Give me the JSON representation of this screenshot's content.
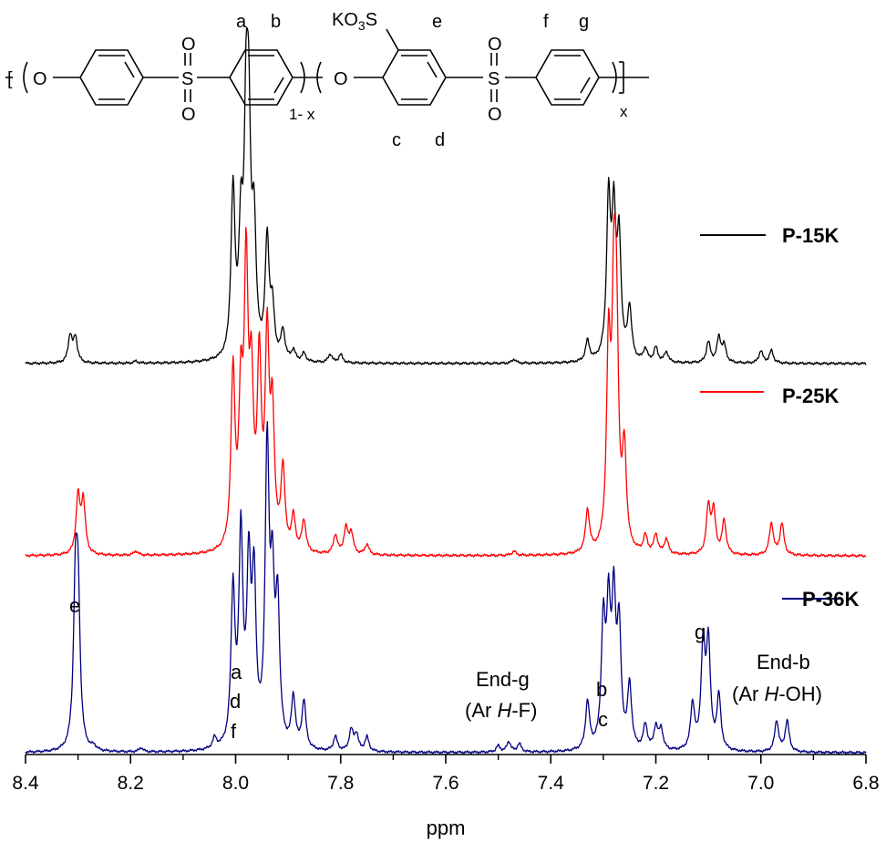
{
  "structure": {
    "bracket_left": "[",
    "O1": "O",
    "S1": "S",
    "O_top1": "O",
    "O_bot1": "O",
    "label_a": "a",
    "label_b": "b",
    "subscript_1x": "1- x",
    "O2": "O",
    "KO3S_pre": "KO",
    "KO3S_sub": "3",
    "KO3S_post": "S",
    "label_e": "e",
    "label_c": "c",
    "label_d": "d",
    "S2": "S",
    "O_top2": "O",
    "O_bot2": "O",
    "label_f": "f",
    "label_g": "g",
    "subscript_x": "x"
  },
  "chart_data": {
    "type": "line",
    "xlabel": "ppm",
    "xlim": [
      8.4,
      6.8
    ],
    "x_ticks": [
      "8.4",
      "8.2",
      "8.0",
      "7.8",
      "7.6",
      "7.4",
      "7.2",
      "7.0",
      "6.8"
    ],
    "x_tick_values": [
      8.4,
      8.2,
      8.0,
      7.8,
      7.6,
      7.4,
      7.2,
      7.0,
      6.8
    ],
    "series": [
      {
        "name": "P-15K",
        "color": "#000000",
        "peaks": [
          [
            8.315,
            0.13
          ],
          [
            8.305,
            0.12
          ],
          [
            8.19,
            0.01
          ],
          [
            8.005,
            0.8
          ],
          [
            7.99,
            0.55
          ],
          [
            7.98,
            1.0
          ],
          [
            7.975,
            0.9
          ],
          [
            7.965,
            0.58
          ],
          [
            7.94,
            0.56
          ],
          [
            7.93,
            0.23
          ],
          [
            7.91,
            0.14
          ],
          [
            7.89,
            0.05
          ],
          [
            7.87,
            0.04
          ],
          [
            7.82,
            0.04
          ],
          [
            7.8,
            0.04
          ],
          [
            7.47,
            0.02
          ],
          [
            7.33,
            0.1
          ],
          [
            7.29,
            0.75
          ],
          [
            7.28,
            0.65
          ],
          [
            7.27,
            0.55
          ],
          [
            7.25,
            0.25
          ],
          [
            7.22,
            0.06
          ],
          [
            7.2,
            0.07
          ],
          [
            7.18,
            0.05
          ],
          [
            7.1,
            0.1
          ],
          [
            7.08,
            0.12
          ],
          [
            7.07,
            0.08
          ],
          [
            7.0,
            0.06
          ],
          [
            6.98,
            0.06
          ]
        ]
      },
      {
        "name": "P-25K",
        "color": "#ff0000",
        "peaks": [
          [
            8.3,
            0.27
          ],
          [
            8.29,
            0.25
          ],
          [
            8.19,
            0.02
          ],
          [
            8.005,
            0.82
          ],
          [
            7.99,
            0.65
          ],
          [
            7.98,
            1.25
          ],
          [
            7.97,
            0.7
          ],
          [
            7.955,
            0.85
          ],
          [
            7.94,
            0.95
          ],
          [
            7.93,
            0.6
          ],
          [
            7.91,
            0.38
          ],
          [
            7.89,
            0.16
          ],
          [
            7.87,
            0.15
          ],
          [
            7.81,
            0.09
          ],
          [
            7.79,
            0.12
          ],
          [
            7.78,
            0.1
          ],
          [
            7.75,
            0.05
          ],
          [
            7.47,
            0.02
          ],
          [
            7.33,
            0.2
          ],
          [
            7.29,
            0.9
          ],
          [
            7.28,
            1.0
          ],
          [
            7.275,
            0.9
          ],
          [
            7.26,
            0.45
          ],
          [
            7.22,
            0.08
          ],
          [
            7.2,
            0.09
          ],
          [
            7.18,
            0.07
          ],
          [
            7.1,
            0.22
          ],
          [
            7.09,
            0.2
          ],
          [
            7.07,
            0.16
          ],
          [
            6.98,
            0.15
          ],
          [
            6.96,
            0.15
          ]
        ]
      },
      {
        "name": "P-36K",
        "color": "#000080",
        "peaks": [
          [
            8.305,
            0.71
          ],
          [
            8.3,
            0.67
          ],
          [
            8.27,
            0.02
          ],
          [
            8.18,
            0.02
          ],
          [
            8.04,
            0.05
          ],
          [
            8.005,
            0.74
          ],
          [
            7.99,
            1.0
          ],
          [
            7.975,
            0.82
          ],
          [
            7.965,
            0.75
          ],
          [
            7.94,
            1.39
          ],
          [
            7.93,
            0.7
          ],
          [
            7.92,
            0.65
          ],
          [
            7.89,
            0.24
          ],
          [
            7.87,
            0.23
          ],
          [
            7.81,
            0.07
          ],
          [
            7.78,
            0.1
          ],
          [
            7.77,
            0.08
          ],
          [
            7.75,
            0.07
          ],
          [
            7.5,
            0.03
          ],
          [
            7.48,
            0.05
          ],
          [
            7.46,
            0.04
          ],
          [
            7.33,
            0.23
          ],
          [
            7.3,
            0.58
          ],
          [
            7.29,
            0.62
          ],
          [
            7.28,
            0.66
          ],
          [
            7.27,
            0.55
          ],
          [
            7.25,
            0.3
          ],
          [
            7.22,
            0.12
          ],
          [
            7.2,
            0.11
          ],
          [
            7.19,
            0.1
          ],
          [
            7.13,
            0.22
          ],
          [
            7.11,
            0.5
          ],
          [
            7.1,
            0.5
          ],
          [
            7.08,
            0.26
          ],
          [
            6.97,
            0.15
          ],
          [
            6.95,
            0.15
          ]
        ]
      }
    ],
    "annotations": [
      "e",
      "a",
      "d",
      "f",
      "End-g",
      "(Ar H-F)",
      "b",
      "c",
      "g",
      "End-b",
      "(Ar H-OH)"
    ],
    "legend_placement": "right, one entry above each trace"
  }
}
